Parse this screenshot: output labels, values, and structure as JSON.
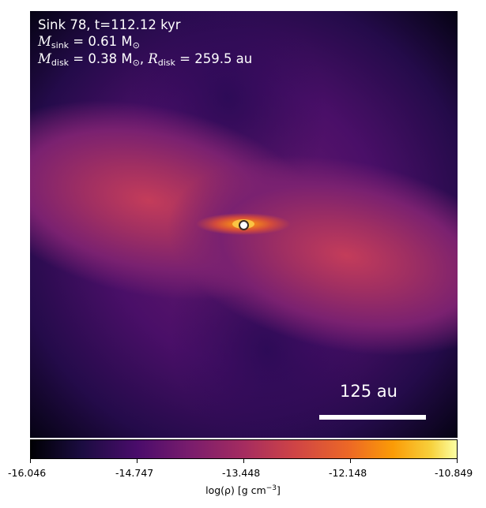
{
  "panel": {
    "title_line1": "Sink 78, t=112.12 kyr",
    "mass_label_var": "M",
    "mass_label_sub": "sink",
    "mass_value": " = 0.61 M",
    "mass_unit_sub": "⊙",
    "disk_mass_var": "M",
    "disk_mass_sub": "disk",
    "disk_mass_value": " = 0.38 M",
    "disk_mass_unit_sub": "⊙",
    "disk_radius_sep": ", ",
    "disk_radius_var": "R",
    "disk_radius_sub": "disk",
    "disk_radius_value": " = 259.5 au",
    "scalebar_label": "125 au"
  },
  "colorbar": {
    "ticks": [
      "-16.046",
      "-14.747",
      "-13.448",
      "-12.148",
      "-10.849"
    ],
    "label_prefix": "log(ρ) [g cm",
    "label_sup": "−3",
    "label_suffix": "]"
  },
  "colors": {
    "background": "#000004",
    "colormap": "inferno"
  }
}
